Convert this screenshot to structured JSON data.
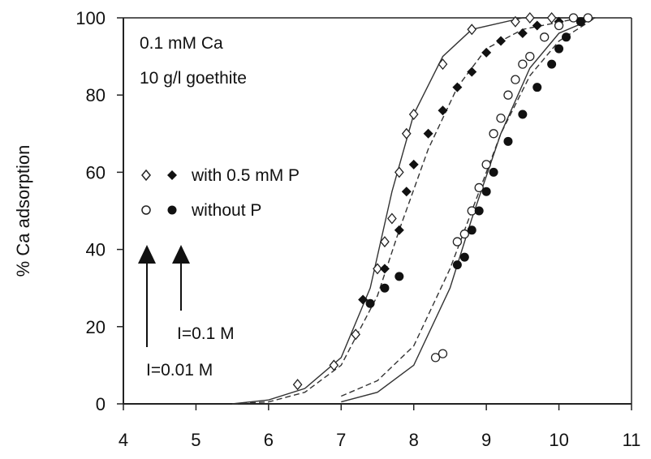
{
  "chart_data": {
    "type": "scatter",
    "title": "",
    "xlabel": "",
    "ylabel": "% Ca adsorption",
    "xlim": [
      4,
      11
    ],
    "ylim": [
      0,
      100
    ],
    "xticks": [
      "4",
      "5",
      "6",
      "7",
      "8",
      "9",
      "10",
      "11"
    ],
    "yticks": [
      "0",
      "20",
      "40",
      "60",
      "80",
      "100"
    ],
    "grid": false,
    "annotations": {
      "conditions_line1": "0.1 mM Ca",
      "conditions_line2": "10 g/l goethite",
      "legend_with_p": "with 0.5 mM P",
      "legend_without_p": "without P",
      "ionic_high": "I=0.1 M",
      "ionic_low": "I=0.01 M"
    },
    "series": [
      {
        "marker": "open-diamond",
        "points": [
          [
            6.4,
            5
          ],
          [
            6.9,
            10
          ],
          [
            7.2,
            18
          ],
          [
            7.5,
            35
          ],
          [
            7.6,
            42
          ],
          [
            7.7,
            48
          ],
          [
            7.8,
            60
          ],
          [
            7.9,
            70
          ],
          [
            8.0,
            75
          ],
          [
            8.4,
            88
          ],
          [
            8.8,
            97
          ],
          [
            9.4,
            99
          ],
          [
            9.6,
            100
          ],
          [
            9.9,
            100
          ]
        ]
      },
      {
        "marker": "filled-diamond",
        "points": [
          [
            7.3,
            27
          ],
          [
            7.6,
            35
          ],
          [
            7.8,
            45
          ],
          [
            7.9,
            55
          ],
          [
            8.0,
            62
          ],
          [
            8.2,
            70
          ],
          [
            8.4,
            76
          ],
          [
            8.6,
            82
          ],
          [
            8.8,
            86
          ],
          [
            9.0,
            91
          ],
          [
            9.2,
            94
          ],
          [
            9.5,
            96
          ],
          [
            9.7,
            98
          ],
          [
            10.0,
            99
          ]
        ]
      },
      {
        "marker": "open-circle",
        "points": [
          [
            8.3,
            12
          ],
          [
            8.4,
            13
          ],
          [
            8.6,
            42
          ],
          [
            8.7,
            44
          ],
          [
            8.8,
            50
          ],
          [
            8.9,
            56
          ],
          [
            9.0,
            62
          ],
          [
            9.1,
            70
          ],
          [
            9.2,
            74
          ],
          [
            9.3,
            80
          ],
          [
            9.4,
            84
          ],
          [
            9.5,
            88
          ],
          [
            9.6,
            90
          ],
          [
            9.8,
            95
          ],
          [
            10.0,
            98
          ],
          [
            10.2,
            100
          ],
          [
            10.4,
            100
          ]
        ]
      },
      {
        "marker": "filled-circle",
        "points": [
          [
            7.4,
            26
          ],
          [
            7.6,
            30
          ],
          [
            7.8,
            33
          ],
          [
            8.6,
            36
          ],
          [
            8.7,
            38
          ],
          [
            8.8,
            45
          ],
          [
            8.9,
            50
          ],
          [
            9.0,
            55
          ],
          [
            9.1,
            60
          ],
          [
            9.3,
            68
          ],
          [
            9.5,
            75
          ],
          [
            9.7,
            82
          ],
          [
            9.9,
            88
          ],
          [
            10.0,
            92
          ],
          [
            10.1,
            95
          ],
          [
            10.3,
            99
          ]
        ]
      }
    ],
    "curves": [
      {
        "style": "solid",
        "points": [
          [
            5.5,
            0
          ],
          [
            6.0,
            1
          ],
          [
            6.5,
            4
          ],
          [
            7.0,
            12
          ],
          [
            7.4,
            30
          ],
          [
            7.7,
            55
          ],
          [
            8.0,
            75
          ],
          [
            8.4,
            90
          ],
          [
            8.8,
            97
          ],
          [
            9.5,
            100
          ],
          [
            10.5,
            100
          ]
        ]
      },
      {
        "style": "dashed",
        "points": [
          [
            5.5,
            0
          ],
          [
            6.0,
            0.5
          ],
          [
            6.5,
            3
          ],
          [
            7.0,
            10
          ],
          [
            7.5,
            28
          ],
          [
            7.8,
            45
          ],
          [
            8.2,
            66
          ],
          [
            8.6,
            82
          ],
          [
            9.0,
            92
          ],
          [
            9.5,
            97
          ],
          [
            10.3,
            100
          ]
        ]
      },
      {
        "style": "dashed",
        "points": [
          [
            7.0,
            2
          ],
          [
            7.5,
            6
          ],
          [
            8.0,
            15
          ],
          [
            8.5,
            35
          ],
          [
            8.8,
            50
          ],
          [
            9.2,
            70
          ],
          [
            9.6,
            85
          ],
          [
            10.0,
            94
          ],
          [
            10.5,
            100
          ]
        ]
      },
      {
        "style": "solid",
        "points": [
          [
            7.0,
            0.5
          ],
          [
            7.5,
            3
          ],
          [
            8.0,
            10
          ],
          [
            8.5,
            30
          ],
          [
            8.8,
            48
          ],
          [
            9.2,
            70
          ],
          [
            9.6,
            87
          ],
          [
            10.0,
            96
          ],
          [
            10.5,
            100
          ]
        ]
      }
    ]
  }
}
